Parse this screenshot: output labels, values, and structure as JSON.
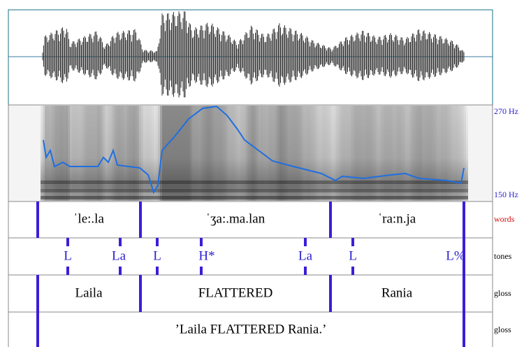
{
  "axis_labels": {
    "pitch_top": "270 Hz",
    "pitch_bottom": "150 Hz"
  },
  "tiers": [
    {
      "name": "words",
      "labels": [
        "ˈle:.la",
        "ˈʒa:.ma.lan",
        "ˈra:n.ja"
      ]
    },
    {
      "name": "tones",
      "labels": [
        "L",
        "La",
        "L",
        "H*",
        "La",
        "L",
        "L%"
      ]
    },
    {
      "name": "gloss",
      "labels": [
        "Laila",
        "FLATTERED",
        "Rania"
      ]
    },
    {
      "name": "gloss",
      "labels": [
        "’Laila FLATTERED Rania.’"
      ]
    }
  ]
}
